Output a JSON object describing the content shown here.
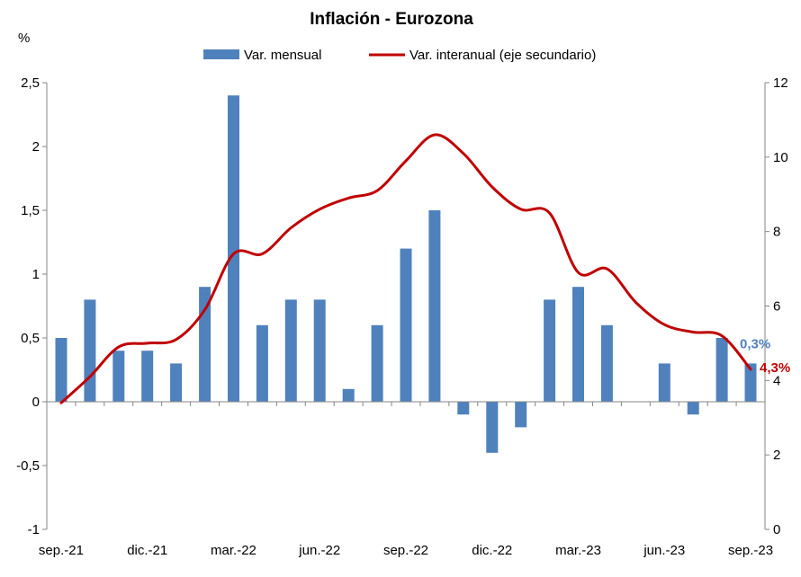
{
  "chart_data": {
    "type": "bar",
    "title": "Inflación - Eurozona",
    "ylabel": "%",
    "ylim": [
      -1,
      2.5
    ],
    "y_ticks": [
      "2,5",
      "2",
      "1,5",
      "1",
      "0,5",
      "0",
      "-0,5",
      "-1"
    ],
    "y2lim": [
      0,
      12
    ],
    "y2_ticks": [
      "12",
      "10",
      "8",
      "6",
      "4",
      "2",
      "0"
    ],
    "x_tick_labels": [
      "sep.-21",
      "dic.-21",
      "mar.-22",
      "jun.-22",
      "sep.-22",
      "dic.-22",
      "mar.-23",
      "jun.-23",
      "sep.-23"
    ],
    "categories": [
      "sep.-21",
      "oct.-21",
      "nov.-21",
      "dic.-21",
      "ene.-22",
      "feb.-22",
      "mar.-22",
      "abr.-22",
      "may.-22",
      "jun.-22",
      "jul.-22",
      "ago.-22",
      "sep.-22",
      "oct.-22",
      "nov.-22",
      "dic.-22",
      "ene.-23",
      "feb.-23",
      "mar.-23",
      "abr.-23",
      "may.-23",
      "jun.-23",
      "jul.-23",
      "ago.-23",
      "sep.-23"
    ],
    "series": [
      {
        "name": "Var. mensual",
        "type": "bar",
        "axis": "primary",
        "color": "#4F81BD",
        "values": [
          0.5,
          0.8,
          0.4,
          0.4,
          0.3,
          0.9,
          2.4,
          0.6,
          0.8,
          0.8,
          0.1,
          0.6,
          1.2,
          1.5,
          -0.1,
          -0.4,
          -0.2,
          0.8,
          0.9,
          0.6,
          0.0,
          0.3,
          -0.1,
          0.5,
          0.3
        ]
      },
      {
        "name": "Var. interanual (eje secundario)",
        "type": "line",
        "axis": "secondary",
        "color": "#C00000",
        "values": [
          3.4,
          4.1,
          4.9,
          5.0,
          5.1,
          5.9,
          7.4,
          7.4,
          8.1,
          8.6,
          8.9,
          9.1,
          9.9,
          10.6,
          10.1,
          9.2,
          8.6,
          8.5,
          6.9,
          7.0,
          6.1,
          5.5,
          5.3,
          5.2,
          4.3
        ]
      }
    ],
    "annotations": [
      {
        "text": "0,3%",
        "series": "Var. mensual",
        "color": "#4F81BD"
      },
      {
        "text": "4,3%",
        "series": "Var. interanual (eje secundario)",
        "color": "#C00000"
      }
    ],
    "legend_position": "top",
    "grid": false
  }
}
